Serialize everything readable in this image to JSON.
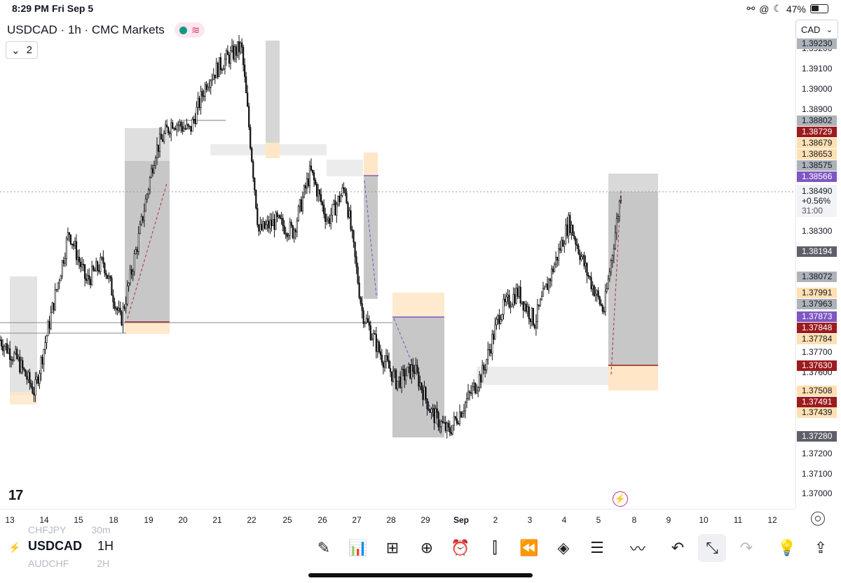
{
  "status_bar": {
    "time": "8:29 PM",
    "date": "Fri Sep 5",
    "battery": "47%"
  },
  "header": {
    "title": "USDCAD · 1h · CMC Markets",
    "indicator_count": "2",
    "currency": "CAD"
  },
  "price_axis": {
    "labels": [
      "1.39200",
      "1.39100",
      "1.39000",
      "1.38900",
      "1.38300",
      "1.37700",
      "1.37600",
      "1.37200",
      "1.37100",
      "1.37000"
    ],
    "tags": [
      {
        "text": "1.39230",
        "color": "#aeb2b9"
      },
      {
        "text": "1.38802",
        "color": "#aeb2b9"
      },
      {
        "text": "1.38729",
        "color": "#9b1b1e"
      },
      {
        "text": "1.38679",
        "color": "#ffe0b2"
      },
      {
        "text": "1.38653",
        "color": "#ffe0b2"
      },
      {
        "text": "1.38575",
        "color": "#aeb2b9"
      },
      {
        "text": "1.38566",
        "color": "#7e57c2"
      },
      {
        "text": "1.38194",
        "color": "#5d6068"
      },
      {
        "text": "1.38072",
        "color": "#aeb2b9"
      },
      {
        "text": "1.37991",
        "color": "#ffe0b2"
      },
      {
        "text": "1.37963",
        "color": "#aeb2b9"
      },
      {
        "text": "1.37873",
        "color": "#7e57c2"
      },
      {
        "text": "1.37848",
        "color": "#9b1b1e"
      },
      {
        "text": "1.37784",
        "color": "#ffe0b2"
      },
      {
        "text": "1.37630",
        "color": "#9b1b1e"
      },
      {
        "text": "1.37508",
        "color": "#ffe0b2"
      },
      {
        "text": "1.37491",
        "color": "#9b1b1e"
      },
      {
        "text": "1.37439",
        "color": "#ffe0b2"
      },
      {
        "text": "1.37280",
        "color": "#5d6068"
      }
    ],
    "current": {
      "price": "1.38490",
      "change": "+0.56%",
      "countdown": "31:00"
    }
  },
  "time_axis": [
    "13",
    "14",
    "15",
    "18",
    "19",
    "20",
    "21",
    "22",
    "25",
    "26",
    "27",
    "28",
    "29",
    "Sep",
    "2",
    "3",
    "4",
    "5",
    "8",
    "9",
    "10",
    "11",
    "12"
  ],
  "chart_data": {
    "type": "candlestick",
    "symbol": "USDCAD",
    "interval": "1h",
    "ylim": [
      1.3695,
      1.3925
    ],
    "points": [
      [
        "13",
        1.3776
      ],
      [
        "13",
        1.3766
      ],
      [
        "14",
        1.375
      ],
      [
        "14",
        1.379
      ],
      [
        "15",
        1.383
      ],
      [
        "15",
        1.3805
      ],
      [
        "18",
        1.3815
      ],
      [
        "18",
        1.3785
      ],
      [
        "19",
        1.3825
      ],
      [
        "19",
        1.387
      ],
      [
        "20",
        1.3885
      ],
      [
        "21",
        1.388
      ],
      [
        "21",
        1.3905
      ],
      [
        "22",
        1.3915
      ],
      [
        "22",
        1.3922
      ],
      [
        "22",
        1.383
      ],
      [
        "25",
        1.3835
      ],
      [
        "25",
        1.383
      ],
      [
        "26",
        1.386
      ],
      [
        "26",
        1.3835
      ],
      [
        "27",
        1.3852
      ],
      [
        "27",
        1.379
      ],
      [
        "28",
        1.377
      ],
      [
        "28",
        1.3755
      ],
      [
        "29",
        1.3762
      ],
      [
        "29",
        1.374
      ],
      [
        "Sep",
        1.373
      ],
      [
        "Sep",
        1.3745
      ],
      [
        "2",
        1.376
      ],
      [
        "2",
        1.379
      ],
      [
        "3",
        1.38
      ],
      [
        "3",
        1.3785
      ],
      [
        "4",
        1.381
      ],
      [
        "4",
        1.3835
      ],
      [
        "5",
        1.381
      ],
      [
        "5",
        1.379
      ],
      [
        "5",
        1.3849
      ]
    ],
    "last_price": 1.3849,
    "change": "+0.56%"
  },
  "bottom_bar": {
    "symbol": "USDCAD",
    "interval": "1H",
    "ghost_above": "CHFJPY",
    "ghost_above_interval": "30m",
    "ghost_below": "AUDCHF",
    "ghost_below_interval": "2H",
    "tools": [
      "draw-icon",
      "indicators-icon",
      "layouts-icon",
      "add-icon",
      "alert-icon",
      "chart-type-icon",
      "replay-icon",
      "layers-icon",
      "settings-sliders-icon",
      "trend-icon",
      "undo-icon",
      "fullscreen-exit-icon",
      "redo-icon",
      "ideas-icon",
      "share-icon"
    ]
  },
  "logo": "17"
}
